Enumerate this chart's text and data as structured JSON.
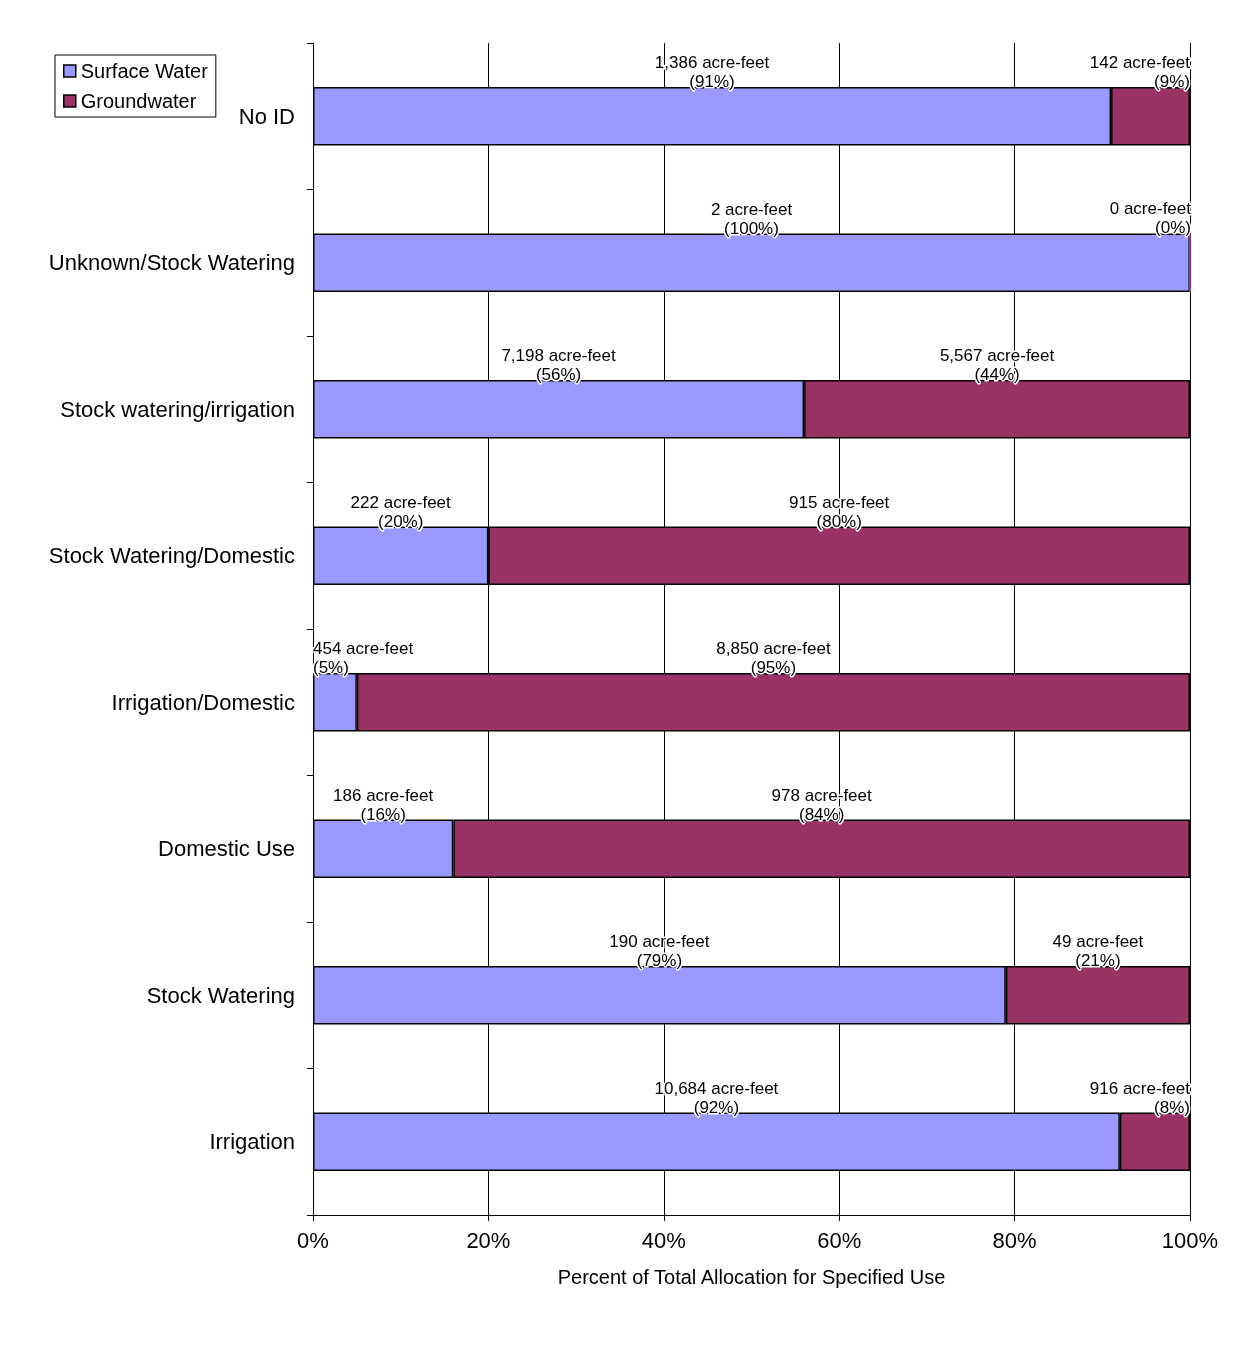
{
  "chart_data": {
    "type": "bar",
    "orientation": "horizontal",
    "stacked": true,
    "xlabel": "Percent of Total Allocation for Specified Use",
    "categories": [
      "No ID",
      "Unknown/Stock Watering",
      "Stock watering/irrigation",
      "Stock Watering/Domestic",
      "Irrigation/Domestic",
      "Domestic Use",
      "Stock Watering",
      "Irrigation"
    ],
    "series": [
      {
        "name": "Surface Water",
        "color": "#9999ff",
        "values": [
          91,
          100,
          56,
          20,
          5,
          16,
          79,
          92
        ],
        "value_labels": [
          "1,386 acre-feet\n(91%)",
          "2 acre-feet\n(100%)",
          "7,198 acre-feet\n(56%)",
          "222 acre-feet\n(20%)",
          "454 acre-feet\n(5%)",
          "186 acre-feet\n(16%)",
          "190 acre-feet\n(79%)",
          "10,684 acre-feet\n(92%)"
        ]
      },
      {
        "name": "Groundwater",
        "color": "#993366",
        "values": [
          9,
          0,
          44,
          80,
          95,
          84,
          21,
          8
        ],
        "value_labels": [
          "142 acre-feet\n(9%)",
          "0 acre-feet\n(0%)",
          "5,567 acre-feet\n(44%)",
          "915 acre-feet\n(80%)",
          "8,850 acre-feet\n(95%)",
          "978 acre-feet\n(84%)",
          "49 acre-feet\n(21%)",
          "916 acre-feet\n(8%)"
        ]
      }
    ],
    "xlim": [
      0,
      100
    ],
    "xticks": [
      {
        "value": 0,
        "label": "0%"
      },
      {
        "value": 20,
        "label": "20%"
      },
      {
        "value": 40,
        "label": "40%"
      },
      {
        "value": 60,
        "label": "60%"
      },
      {
        "value": 80,
        "label": "80%"
      },
      {
        "value": 100,
        "label": "100%"
      }
    ],
    "grid": "x",
    "legend": "top left"
  }
}
